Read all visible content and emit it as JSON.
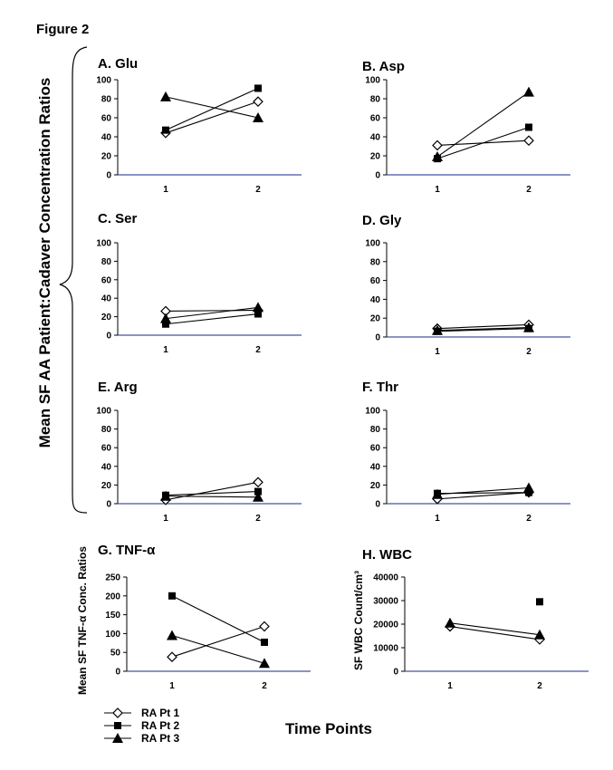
{
  "figure_title": "Figure 2",
  "y_axis_label_main": "Mean SF AA Patient:Cadaver Concentration Ratios",
  "x_axis_label": "Time Points",
  "legend": [
    {
      "label": "RA Pt 1",
      "marker": "diamond-open"
    },
    {
      "label": "RA Pt 2",
      "marker": "square-filled"
    },
    {
      "label": "RA Pt 3",
      "marker": "triangle-filled"
    }
  ],
  "colors": {
    "axis": "#000000",
    "series": "#000000",
    "xaxis_line": "#1a2a8c"
  },
  "chart_data": [
    {
      "type": "line",
      "title": "A. Glu",
      "categories": [
        "1",
        "2"
      ],
      "ylim": [
        0,
        100
      ],
      "yticks": [
        0,
        20,
        40,
        60,
        80,
        100
      ],
      "series": [
        {
          "name": "RA Pt 1",
          "values": [
            44,
            77
          ]
        },
        {
          "name": "RA Pt 2",
          "values": [
            47,
            91
          ]
        },
        {
          "name": "RA Pt 3",
          "values": [
            82,
            60
          ]
        }
      ]
    },
    {
      "type": "line",
      "title": "B. Asp",
      "categories": [
        "1",
        "2"
      ],
      "ylim": [
        0,
        100
      ],
      "yticks": [
        0,
        20,
        40,
        60,
        80,
        100
      ],
      "series": [
        {
          "name": "RA Pt 1",
          "values": [
            31,
            36
          ]
        },
        {
          "name": "RA Pt 2",
          "values": [
            17,
            50
          ]
        },
        {
          "name": "RA Pt 3",
          "values": [
            19,
            87
          ]
        }
      ]
    },
    {
      "type": "line",
      "title": "C. Ser",
      "categories": [
        "1",
        "2"
      ],
      "ylim": [
        0,
        100
      ],
      "yticks": [
        0,
        20,
        40,
        60,
        80,
        100
      ],
      "series": [
        {
          "name": "RA Pt 1",
          "values": [
            26,
            27
          ]
        },
        {
          "name": "RA Pt 2",
          "values": [
            12,
            23
          ]
        },
        {
          "name": "RA Pt 3",
          "values": [
            18,
            30
          ]
        }
      ]
    },
    {
      "type": "line",
      "title": "D. Gly",
      "categories": [
        "1",
        "2"
      ],
      "ylim": [
        0,
        100
      ],
      "yticks": [
        0,
        20,
        40,
        60,
        80,
        100
      ],
      "series": [
        {
          "name": "RA Pt 1",
          "values": [
            9,
            13
          ]
        },
        {
          "name": "RA Pt 2",
          "values": [
            6,
            9
          ]
        },
        {
          "name": "RA Pt 3",
          "values": [
            7,
            10
          ]
        }
      ]
    },
    {
      "type": "line",
      "title": "E. Arg",
      "categories": [
        "1",
        "2"
      ],
      "ylim": [
        0,
        100
      ],
      "yticks": [
        0,
        20,
        40,
        60,
        80,
        100
      ],
      "series": [
        {
          "name": "RA Pt 1",
          "values": [
            4,
            23
          ]
        },
        {
          "name": "RA Pt 2",
          "values": [
            9,
            13
          ]
        },
        {
          "name": "RA Pt 3",
          "values": [
            8,
            7
          ]
        }
      ]
    },
    {
      "type": "line",
      "title": "F. Thr",
      "categories": [
        "1",
        "2"
      ],
      "ylim": [
        0,
        100
      ],
      "yticks": [
        0,
        20,
        40,
        60,
        80,
        100
      ],
      "series": [
        {
          "name": "RA Pt 1",
          "values": [
            5,
            12
          ]
        },
        {
          "name": "RA Pt 2",
          "values": [
            11,
            12
          ]
        },
        {
          "name": "RA Pt 3",
          "values": [
            10,
            17
          ]
        }
      ]
    },
    {
      "type": "line",
      "title": "G. TNF-α",
      "ylabel": "Mean SF TNF-α Conc. Ratios",
      "categories": [
        "1",
        "2"
      ],
      "ylim": [
        0,
        250
      ],
      "yticks": [
        0,
        50,
        100,
        150,
        200,
        250
      ],
      "series": [
        {
          "name": "RA Pt 1",
          "values": [
            38,
            119
          ]
        },
        {
          "name": "RA Pt 2",
          "values": [
            200,
            77
          ]
        },
        {
          "name": "RA Pt 3",
          "values": [
            95,
            21
          ]
        }
      ]
    },
    {
      "type": "line",
      "title": "H. WBC",
      "ylabel": "SF WBC Count/cm³",
      "categories": [
        "1",
        "2"
      ],
      "ylim": [
        0,
        40000
      ],
      "yticks": [
        0,
        10000,
        20000,
        30000,
        40000
      ],
      "series": [
        {
          "name": "RA Pt 1",
          "values": [
            19000,
            13500
          ]
        },
        {
          "name": "RA Pt 2",
          "values": [
            null,
            29500
          ]
        },
        {
          "name": "RA Pt 3",
          "values": [
            20500,
            15500
          ]
        }
      ]
    }
  ]
}
